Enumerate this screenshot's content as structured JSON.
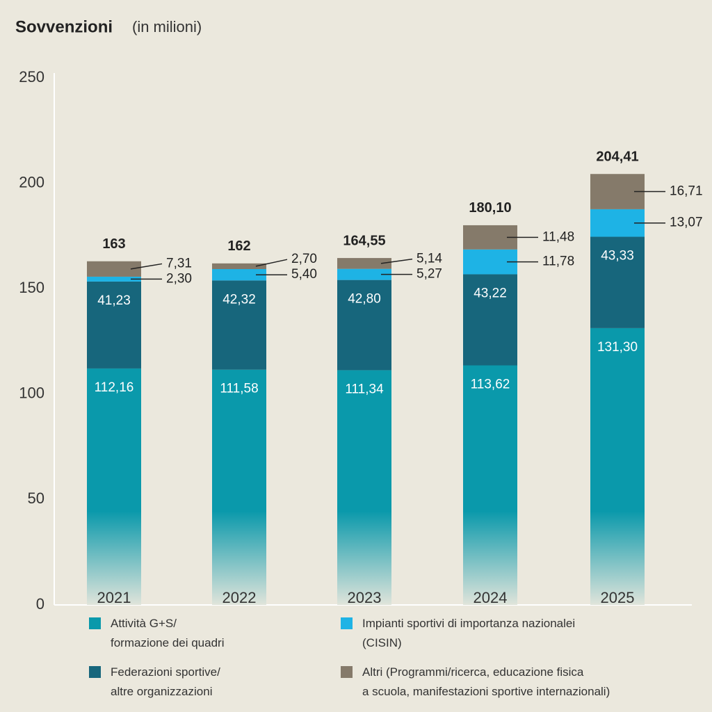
{
  "chart_data": {
    "type": "stacked_bar",
    "title": "Sovvenzioni",
    "subtitle": "(in milioni)",
    "categories": [
      "2021",
      "2022",
      "2023",
      "2024",
      "2025"
    ],
    "series": [
      {
        "name": "Attività G+S/\nformazione dei quadri",
        "color": "#0a99ab",
        "values": [
          112.16,
          111.58,
          111.34,
          113.62,
          131.3
        ],
        "value_labels": [
          "112,16",
          "111,58",
          "111,34",
          "113,62",
          "131,30"
        ]
      },
      {
        "name": "Federazioni sportive/\naltre organizzazioni",
        "color": "#17667c",
        "values": [
          41.23,
          42.32,
          42.8,
          43.22,
          43.33
        ],
        "value_labels": [
          "41,23",
          "42,32",
          "42,80",
          "43,22",
          "43,33"
        ]
      },
      {
        "name": "Impianti sportivi di importanza nazionalei\n(CISIN)",
        "color": "#1eb3e5",
        "values": [
          2.3,
          5.4,
          5.27,
          11.78,
          13.07
        ],
        "value_labels": [
          "2,30",
          "5,40",
          "5,27",
          "11,78",
          "13,07"
        ]
      },
      {
        "name": "Altri (Programmi/ricerca, educazione fisica\na scuola, manifestazioni sportive internazionali)",
        "color": "#857a6a",
        "values": [
          7.31,
          2.7,
          5.14,
          11.48,
          16.71
        ],
        "value_labels": [
          "7,31",
          "2,70",
          "5,14",
          "11,48",
          "16,71"
        ]
      }
    ],
    "totals": {
      "values": [
        163,
        162,
        164.55,
        180.1,
        204.41
      ],
      "value_labels": [
        "163",
        "162",
        "164,55",
        "180,10",
        "204,41"
      ]
    },
    "ylim": [
      0,
      250
    ],
    "yticks": [
      0,
      50,
      100,
      150,
      200,
      250
    ],
    "grid": false
  }
}
